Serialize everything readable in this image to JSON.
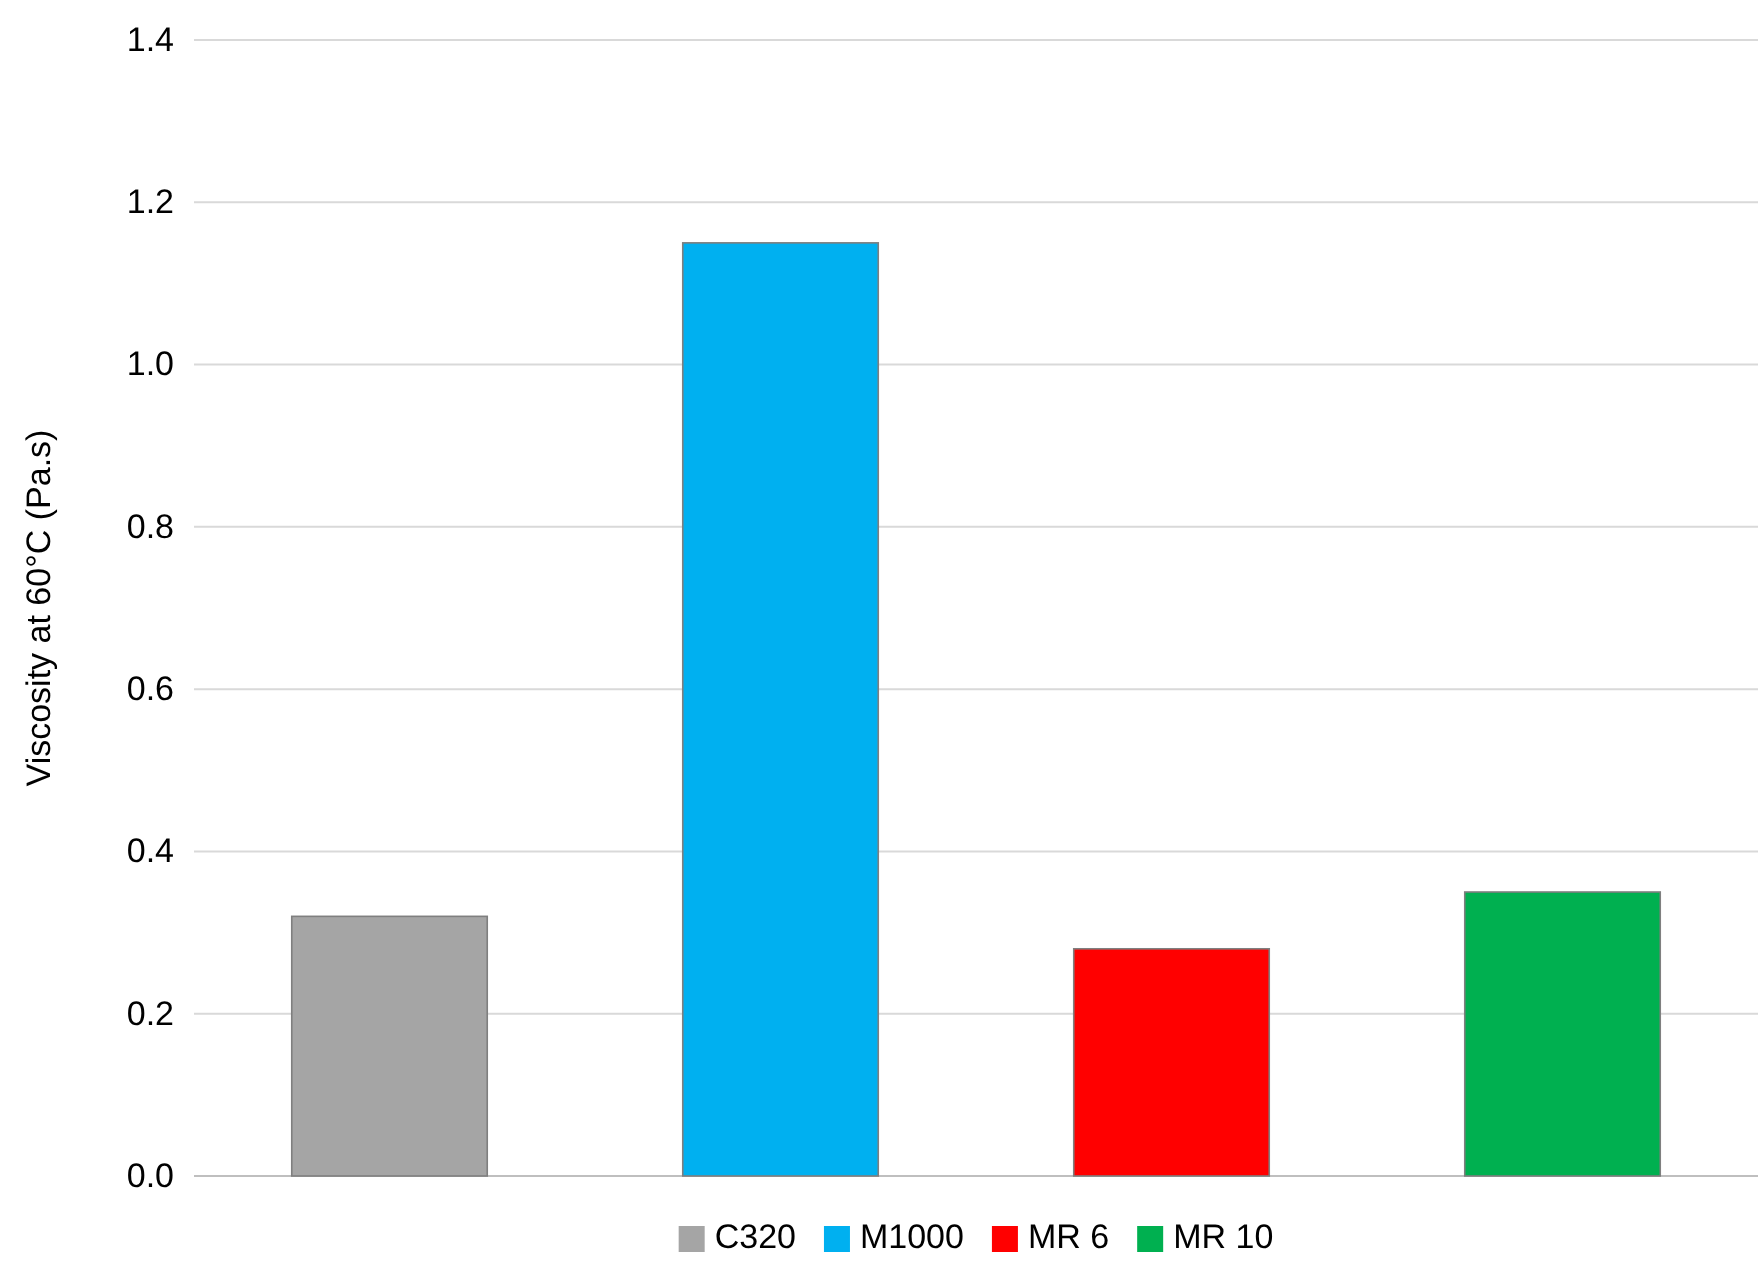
{
  "chart_data": {
    "type": "bar",
    "ylabel": "Viscosity at 60°C (Pa.s)",
    "categories": [
      null,
      null,
      null,
      null
    ],
    "series": [
      {
        "name": "C320",
        "color": "#a5a5a5",
        "values": [
          0.32,
          null,
          null,
          null
        ]
      },
      {
        "name": "M1000",
        "color": "#00b0f0",
        "values": [
          null,
          1.15,
          null,
          null
        ]
      },
      {
        "name": "MR 6",
        "color": "#ff0000",
        "values": [
          null,
          null,
          0.28,
          null
        ]
      },
      {
        "name": "MR 10",
        "color": "#00b050",
        "values": [
          null,
          null,
          null,
          0.35
        ]
      }
    ],
    "ylim": [
      0,
      1.4
    ],
    "yticks": [
      {
        "value": 0,
        "label": "0.0"
      },
      {
        "value": 0.2,
        "label": "0.2"
      },
      {
        "value": 0.4,
        "label": "0.4"
      },
      {
        "value": 0.6,
        "label": "0.6"
      },
      {
        "value": 0.8,
        "label": "0.8"
      },
      {
        "value": 1.0,
        "label": "1.0"
      },
      {
        "value": 1.2,
        "label": "1.2"
      },
      {
        "value": 1.4,
        "label": "1.4"
      }
    ],
    "grid": "y",
    "legend": "bottom"
  }
}
